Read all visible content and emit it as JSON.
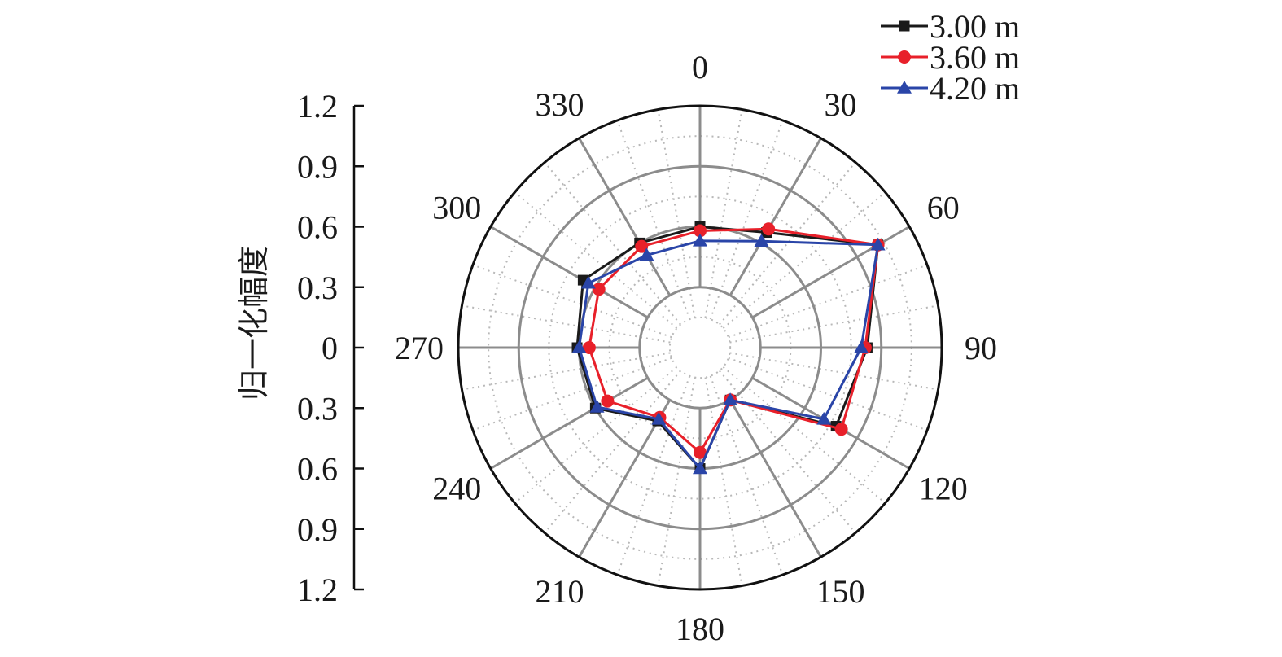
{
  "chart_data": {
    "type": "polar-line",
    "title": "",
    "ylabel": "归一化幅度",
    "angle_ticks": [
      "0",
      "30",
      "60",
      "90",
      "120",
      "150",
      "180",
      "210",
      "240",
      "270",
      "300",
      "330"
    ],
    "angle_values_deg": [
      0,
      30,
      60,
      90,
      120,
      150,
      180,
      210,
      240,
      270,
      300,
      330
    ],
    "radial_ticks": [
      "1.2",
      "0.9",
      "0.6",
      "0.3",
      "0",
      "0.3",
      "0.6",
      "0.9",
      "1.2"
    ],
    "rlim": [
      0,
      1.2
    ],
    "grid": true,
    "legend_position": "top-right",
    "series": [
      {
        "name": "3.00 m",
        "color": "#1a1a1a",
        "marker": "square",
        "r": [
          0.6,
          0.66,
          1.02,
          0.83,
          0.78,
          0.3,
          0.6,
          0.42,
          0.6,
          0.61,
          0.67,
          0.6
        ]
      },
      {
        "name": "3.60 m",
        "color": "#e8202a",
        "marker": "circle",
        "r": [
          0.58,
          0.68,
          1.02,
          0.82,
          0.81,
          0.3,
          0.52,
          0.4,
          0.53,
          0.55,
          0.58,
          0.58
        ]
      },
      {
        "name": "4.20 m",
        "color": "#2a45a8",
        "marker": "triangle",
        "r": [
          0.53,
          0.61,
          1.02,
          0.8,
          0.71,
          0.3,
          0.6,
          0.41,
          0.59,
          0.6,
          0.64,
          0.53
        ]
      }
    ]
  }
}
